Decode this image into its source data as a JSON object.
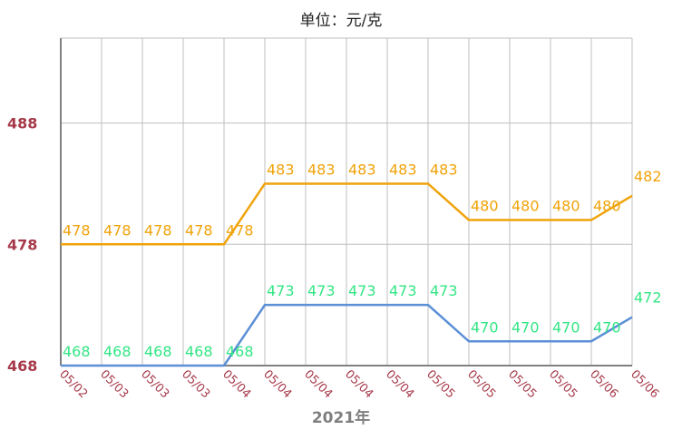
{
  "title": "单位：元/克",
  "chart_data": {
    "type": "line",
    "title": "单位：元/克",
    "xlabel": "2021年",
    "ylabel": "",
    "ylim": [
      468,
      495
    ],
    "yticks": [
      468,
      478,
      488
    ],
    "grid": true,
    "categories": [
      "05/02",
      "05/03",
      "05/03",
      "05/03",
      "05/04",
      "05/04",
      "05/04",
      "05/04",
      "05/04",
      "05/05",
      "05/05",
      "05/05",
      "05/05",
      "05/06",
      "05/06"
    ],
    "series": [
      {
        "values": [
          478,
          478,
          478,
          478,
          478,
          483,
          483,
          483,
          483,
          483,
          480,
          480,
          480,
          480,
          482
        ],
        "color": "#f0a30a"
      },
      {
        "values": [
          468,
          468,
          468,
          468,
          468,
          473,
          473,
          473,
          473,
          473,
          470,
          470,
          470,
          470,
          472
        ],
        "color": "#5b8fd6",
        "label_color": "#33e684"
      }
    ]
  },
  "colors": {
    "ytick": "#a63a4a",
    "xtick": "#a63a4a",
    "grid": "#bfbfbf",
    "axis": "#808080"
  }
}
